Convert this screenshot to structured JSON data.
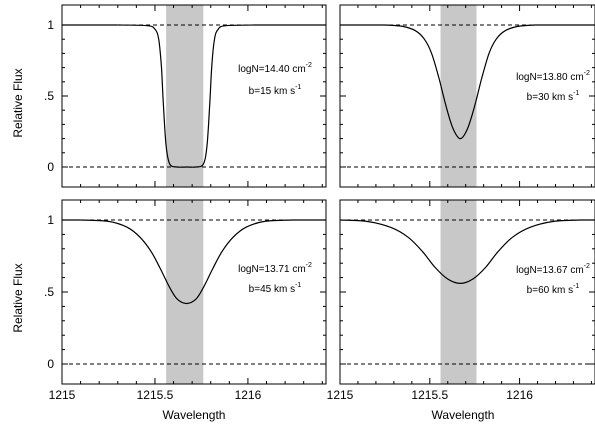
{
  "figure": {
    "ylabel": "Relative Flux",
    "xlabel": "Wavelength"
  },
  "chart_data": [
    {
      "type": "line",
      "panel": "top-left",
      "annotation": [
        "logN=14.40 cm⁻²",
        "b=15 km s⁻¹"
      ],
      "xlim": [
        1215.0,
        1216.42
      ],
      "ylim": [
        0,
        1
      ],
      "ytick_labels": [
        "1",
        ".5",
        "0"
      ],
      "xtick_labels": [],
      "shaded_region": [
        1215.56,
        1215.76
      ],
      "line_center": 1215.67,
      "continuum": 1.0,
      "x": [
        1215.3,
        1215.46,
        1215.5,
        1215.52,
        1215.535,
        1215.545,
        1215.56,
        1215.58,
        1215.62,
        1215.67,
        1215.72,
        1215.76,
        1215.78,
        1215.795,
        1215.805,
        1215.82,
        1215.84,
        1215.88,
        1216.05
      ],
      "y": [
        1.0,
        0.995,
        0.97,
        0.9,
        0.7,
        0.45,
        0.15,
        0.02,
        0.0,
        0.0,
        0.0,
        0.02,
        0.15,
        0.45,
        0.7,
        0.9,
        0.97,
        0.995,
        1.0
      ]
    },
    {
      "type": "line",
      "panel": "top-right",
      "annotation": [
        "logN=13.80 cm⁻²",
        "b=30 km s⁻¹"
      ],
      "xlim": [
        1215.0,
        1216.42
      ],
      "ylim": [
        0,
        1
      ],
      "ytick_labels": [],
      "xtick_labels": [],
      "shaded_region": [
        1215.56,
        1215.76
      ],
      "line_center": 1215.67,
      "continuum": 1.0,
      "x": [
        1215.25,
        1215.35,
        1215.42,
        1215.47,
        1215.51,
        1215.55,
        1215.59,
        1215.63,
        1215.67,
        1215.71,
        1215.75,
        1215.79,
        1215.83,
        1215.87,
        1215.92,
        1215.99,
        1216.09
      ],
      "y": [
        1.0,
        0.99,
        0.96,
        0.9,
        0.8,
        0.63,
        0.43,
        0.27,
        0.2,
        0.27,
        0.43,
        0.63,
        0.8,
        0.9,
        0.96,
        0.99,
        1.0
      ]
    },
    {
      "type": "line",
      "panel": "bottom-left",
      "annotation": [
        "logN=13.71 cm⁻²",
        "b=45 km s⁻¹"
      ],
      "xlim": [
        1215.0,
        1216.42
      ],
      "ylim": [
        0,
        1
      ],
      "ytick_labels": [
        "1",
        ".5",
        "0"
      ],
      "xtick_labels": [
        "1215",
        "1215.5",
        "1216"
      ],
      "shaded_region": [
        1215.56,
        1215.76
      ],
      "line_center": 1215.67,
      "continuum": 1.0,
      "x": [
        1215.1,
        1215.25,
        1215.35,
        1215.42,
        1215.48,
        1215.53,
        1215.58,
        1215.62,
        1215.67,
        1215.72,
        1215.76,
        1215.81,
        1215.86,
        1215.92,
        1215.99,
        1216.09,
        1216.24
      ],
      "y": [
        1.0,
        0.99,
        0.95,
        0.88,
        0.78,
        0.66,
        0.53,
        0.45,
        0.42,
        0.45,
        0.53,
        0.66,
        0.78,
        0.88,
        0.95,
        0.99,
        1.0
      ]
    },
    {
      "type": "line",
      "panel": "bottom-right",
      "annotation": [
        "logN=13.67 cm⁻²",
        "b=60 km s⁻¹"
      ],
      "xlim": [
        1215.0,
        1216.42
      ],
      "ylim": [
        0,
        1
      ],
      "ytick_labels": [],
      "xtick_labels": [
        "1215",
        "1215.5",
        "1216"
      ],
      "shaded_region": [
        1215.56,
        1215.76
      ],
      "line_center": 1215.67,
      "continuum": 1.0,
      "x": [
        1215.0,
        1215.15,
        1215.28,
        1215.38,
        1215.46,
        1215.53,
        1215.6,
        1215.67,
        1215.74,
        1215.81,
        1215.88,
        1215.96,
        1216.06,
        1216.19,
        1216.34
      ],
      "y": [
        1.0,
        0.99,
        0.95,
        0.88,
        0.78,
        0.67,
        0.59,
        0.56,
        0.59,
        0.67,
        0.78,
        0.88,
        0.95,
        0.99,
        1.0
      ]
    }
  ]
}
